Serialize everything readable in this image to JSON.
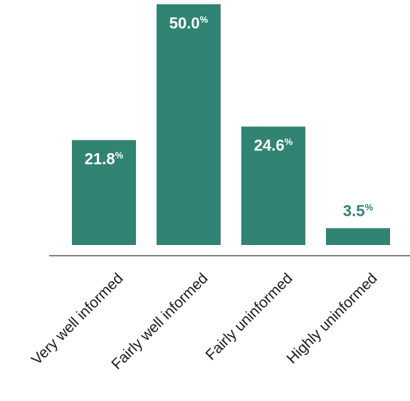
{
  "chart_data": {
    "type": "bar",
    "title": "",
    "xlabel": "",
    "ylabel": "",
    "categories": [
      "Very well informed",
      "Fairly well informed",
      "Fairly uninformed",
      "Highly uninformed"
    ],
    "values": [
      21.8,
      50.0,
      24.6,
      3.5
    ],
    "value_labels": [
      "21.8",
      "50.0",
      "24.6",
      "3.5"
    ],
    "value_suffix": "%",
    "ylim": [
      0,
      50
    ],
    "grid": false,
    "legend": "none",
    "colors": {
      "bar": "#318373",
      "label_inside": "#ffffff",
      "label_outside": "#318373",
      "axis": "#333333"
    }
  }
}
